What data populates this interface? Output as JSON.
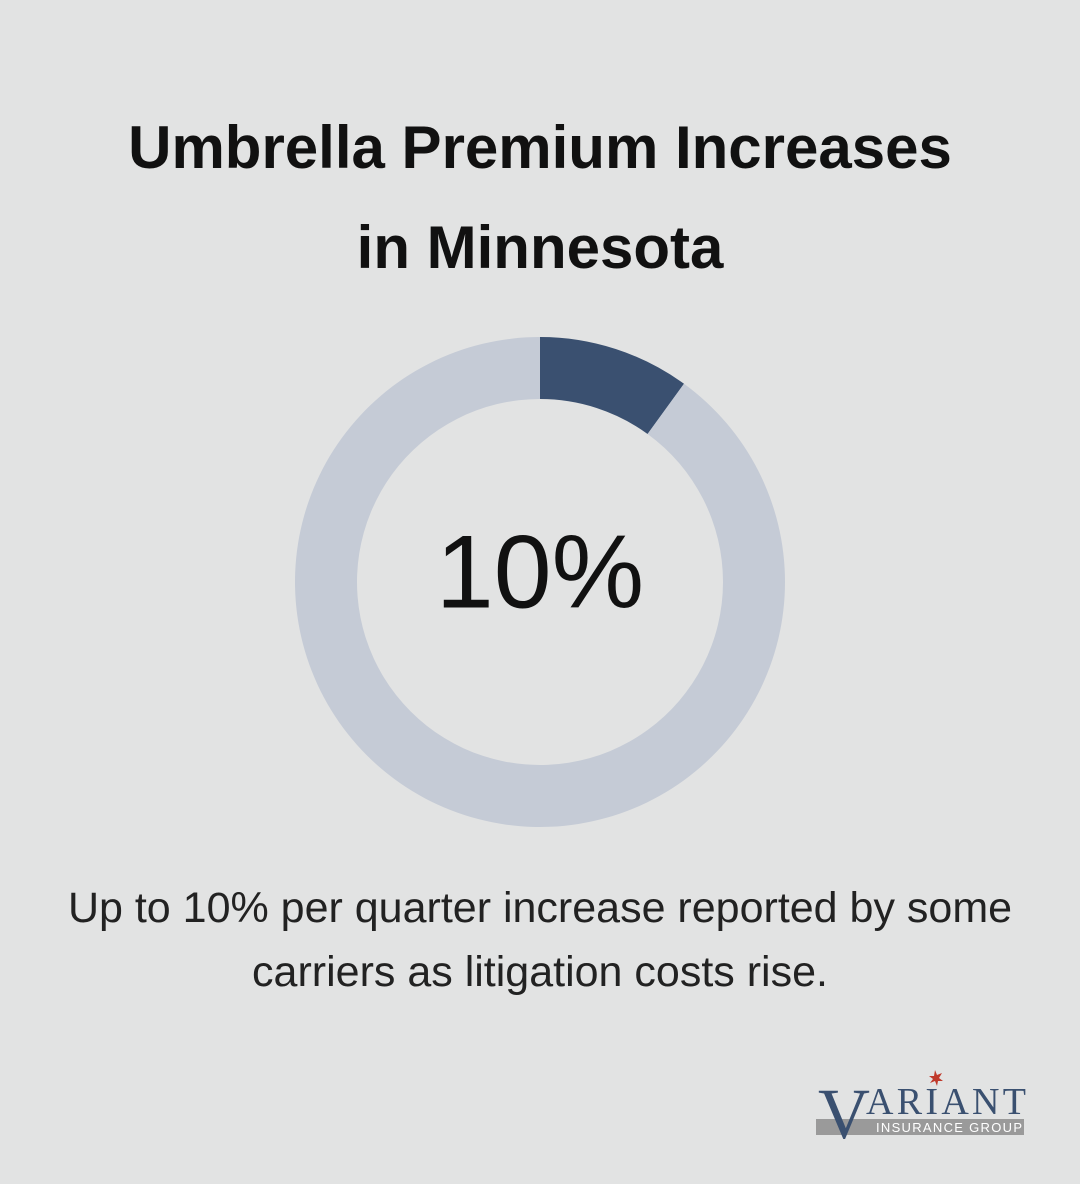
{
  "chart_data": {
    "type": "donut",
    "title": "Umbrella Premium Increases in Minnesota",
    "values": [
      10,
      90
    ],
    "value_labels": [
      "10%",
      null
    ],
    "colors": [
      "#3a5070",
      "#c5cbd6"
    ],
    "caption": "Up to 10% per quarter increase reported by some carriers as litigation costs rise."
  },
  "logo": {
    "initial": "V",
    "name": "ARIANT",
    "tagline": "INSURANCE GROUP"
  }
}
